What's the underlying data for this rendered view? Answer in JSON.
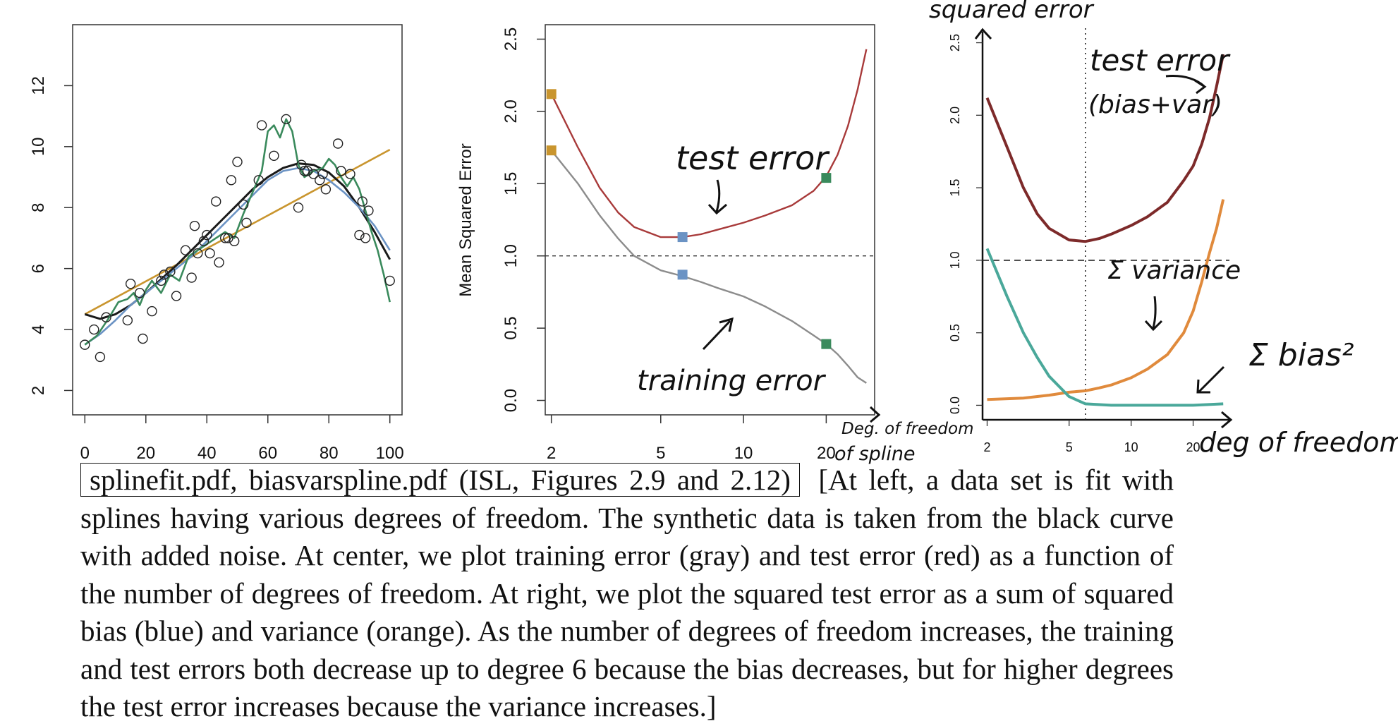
{
  "chart_data": [
    {
      "type": "scatter",
      "title": "",
      "xlabel": "",
      "ylabel": "",
      "xlim": [
        0,
        100
      ],
      "ylim": [
        1.2,
        14
      ],
      "xticks": [
        "0",
        "20",
        "40",
        "60",
        "80",
        "100"
      ],
      "yticks": [
        "2",
        "4",
        "6",
        "8",
        "10",
        "12"
      ],
      "points": {
        "x": [
          0,
          3,
          5,
          7,
          14,
          15,
          18,
          19,
          22,
          25,
          26,
          28,
          30,
          33,
          35,
          36,
          37,
          39,
          40,
          41,
          43,
          44,
          46,
          47,
          48,
          49,
          50,
          52,
          53,
          57,
          58,
          62,
          66,
          70,
          71,
          72,
          73,
          75,
          77,
          78,
          79,
          83,
          84,
          87,
          90,
          91,
          92,
          93,
          100
        ],
        "y": [
          3.5,
          4.0,
          3.1,
          4.4,
          4.3,
          5.5,
          5.2,
          3.7,
          4.6,
          5.6,
          5.8,
          5.9,
          5.1,
          6.6,
          5.7,
          7.4,
          6.5,
          6.9,
          7.1,
          6.5,
          8.2,
          6.2,
          7.0,
          7.0,
          8.9,
          6.9,
          9.5,
          8.1,
          7.5,
          8.9,
          10.7,
          9.7,
          10.9,
          8.0,
          9.4,
          9.2,
          9.2,
          9.1,
          8.9,
          9.1,
          8.6,
          10.1,
          9.2,
          9.1,
          7.1,
          8.2,
          7.0,
          7.9,
          5.6
        ]
      },
      "series": [
        {
          "name": "",
          "color": "#c9952e",
          "x": [
            0,
            100
          ],
          "y": [
            4.5,
            9.9
          ]
        },
        {
          "name": "",
          "color": "#1a1a1a",
          "x": [
            0,
            5,
            10,
            15,
            20,
            25,
            30,
            35,
            40,
            45,
            50,
            55,
            60,
            65,
            70,
            75,
            80,
            85,
            90,
            95,
            100
          ],
          "y": [
            4.5,
            4.35,
            4.5,
            4.8,
            5.2,
            5.65,
            6.1,
            6.6,
            7.1,
            7.6,
            8.1,
            8.6,
            9.0,
            9.3,
            9.45,
            9.4,
            9.15,
            8.7,
            8.0,
            7.2,
            6.3
          ]
        },
        {
          "name": "",
          "color": "#6b93c4",
          "x": [
            0,
            5,
            10,
            15,
            20,
            25,
            30,
            35,
            40,
            45,
            50,
            55,
            60,
            65,
            70,
            75,
            80,
            85,
            90,
            95,
            100
          ],
          "y": [
            3.5,
            3.85,
            4.3,
            4.8,
            5.2,
            5.6,
            6.0,
            6.4,
            6.9,
            7.4,
            7.9,
            8.4,
            8.9,
            9.2,
            9.3,
            9.2,
            8.9,
            8.5,
            8.0,
            7.4,
            6.6
          ]
        },
        {
          "name": "",
          "color": "#3a8a5c",
          "x": [
            0,
            4,
            8,
            11,
            14,
            16,
            18,
            20,
            22,
            25,
            28,
            31,
            34,
            37,
            40,
            43,
            46,
            49,
            52,
            55,
            58,
            60,
            62,
            64,
            66,
            68,
            70,
            72,
            75,
            78,
            80,
            82,
            84,
            86,
            88,
            90,
            92,
            94,
            96,
            98,
            100
          ],
          "y": [
            3.5,
            3.8,
            4.4,
            4.9,
            5.0,
            5.2,
            4.8,
            5.3,
            5.6,
            5.2,
            5.8,
            5.6,
            6.4,
            6.6,
            6.8,
            7.0,
            7.2,
            7.0,
            7.8,
            8.5,
            9.2,
            10.5,
            10.7,
            10.3,
            10.9,
            10.5,
            9.4,
            9.0,
            9.2,
            9.3,
            9.6,
            9.4,
            9.0,
            8.7,
            9.0,
            8.6,
            7.9,
            7.2,
            6.6,
            5.8,
            4.9
          ]
        }
      ]
    },
    {
      "type": "line",
      "title": "",
      "xlabel": "",
      "ylabel": "Mean Squared Error",
      "xscale": "log",
      "xlim": [
        1.9,
        30
      ],
      "ylim": [
        -0.1,
        2.6
      ],
      "xticks": [
        "2",
        "5",
        "10",
        "20"
      ],
      "yticks": [
        "0.0",
        "0.5",
        "1.0",
        "1.5",
        "2.0",
        "2.5"
      ],
      "hline": 1.0,
      "series": [
        {
          "name": "",
          "color": "#a83a3a",
          "x": [
            2,
            2.5,
            3,
            3.5,
            4,
            5,
            6,
            7,
            8,
            10,
            12,
            15,
            18,
            20,
            22,
            24,
            26,
            28
          ],
          "y": [
            2.12,
            1.75,
            1.47,
            1.3,
            1.2,
            1.13,
            1.13,
            1.15,
            1.18,
            1.23,
            1.28,
            1.35,
            1.45,
            1.55,
            1.7,
            1.9,
            2.15,
            2.43
          ]
        },
        {
          "name": "",
          "color": "#8c8c8c",
          "x": [
            2,
            2.5,
            3,
            3.5,
            4,
            5,
            6,
            7,
            8,
            10,
            12,
            15,
            18,
            20,
            22,
            24,
            26,
            28
          ],
          "y": [
            1.73,
            1.5,
            1.28,
            1.12,
            1.0,
            0.9,
            0.86,
            0.82,
            0.78,
            0.72,
            0.65,
            0.55,
            0.45,
            0.39,
            0.32,
            0.24,
            0.16,
            0.12
          ]
        }
      ],
      "markers": [
        {
          "x": 2,
          "y": 2.12,
          "color": "#c9952e"
        },
        {
          "x": 2,
          "y": 1.73,
          "color": "#c9952e"
        },
        {
          "x": 6,
          "y": 1.13,
          "color": "#6b93c4"
        },
        {
          "x": 6,
          "y": 0.87,
          "color": "#6b93c4"
        },
        {
          "x": 20,
          "y": 1.54,
          "color": "#3a8a5c"
        },
        {
          "x": 20,
          "y": 0.39,
          "color": "#3a8a5c"
        }
      ]
    },
    {
      "type": "line",
      "title": "",
      "xlabel": "",
      "ylabel": "",
      "xscale": "log",
      "xlim": [
        1.9,
        30
      ],
      "ylim": [
        -0.1,
        2.6
      ],
      "xticks": [
        "2",
        "5",
        "10",
        "20"
      ],
      "yticks": [
        "0.0",
        "0.5",
        "1.0",
        "1.5",
        "2.0",
        "2.5"
      ],
      "hline": 1.0,
      "vline": 6,
      "series": [
        {
          "name": "",
          "color": "#7d2a2a",
          "x": [
            2,
            2.5,
            3,
            3.5,
            4,
            5,
            6,
            7,
            8,
            10,
            12,
            15,
            18,
            20,
            22,
            24,
            26,
            28
          ],
          "y": [
            2.12,
            1.78,
            1.5,
            1.32,
            1.22,
            1.14,
            1.13,
            1.15,
            1.18,
            1.24,
            1.3,
            1.4,
            1.55,
            1.65,
            1.8,
            1.98,
            2.2,
            2.42
          ]
        },
        {
          "name": "",
          "color": "#e08a3c",
          "x": [
            2,
            3,
            4,
            5,
            6,
            7,
            8,
            10,
            12,
            15,
            18,
            20,
            22,
            24,
            26,
            28
          ],
          "y": [
            0.04,
            0.05,
            0.07,
            0.09,
            0.1,
            0.12,
            0.14,
            0.19,
            0.25,
            0.35,
            0.5,
            0.65,
            0.85,
            1.05,
            1.22,
            1.42
          ]
        },
        {
          "name": "",
          "color": "#4aa89a",
          "x": [
            2,
            2.5,
            3,
            3.5,
            4,
            5,
            6,
            8,
            10,
            15,
            20,
            28
          ],
          "y": [
            1.08,
            0.75,
            0.5,
            0.33,
            0.2,
            0.06,
            0.01,
            0.0,
            0.0,
            0.0,
            0.0,
            0.01
          ]
        }
      ]
    }
  ],
  "annotations": {
    "center_test_error": "test error",
    "center_training_error": "training error",
    "center_xaxis_note_line1": "Deg. of freedom",
    "center_xaxis_note_line2": "of spline",
    "right_yaxis_note": "squared error",
    "right_test_error_line1": "test error",
    "right_test_error_line2": "(bias+var)",
    "right_variance": "Σ variance",
    "right_bias": "Σ bias²",
    "right_xaxis_note": "deg of freedom"
  },
  "caption": {
    "boxed": "splinefit.pdf, biasvarspline.pdf (ISL, Figures 2.9 and 2.12)",
    "text": "[At left, a data set is fit with splines having various degrees of freedom. The synthetic data is taken from the black curve with added noise. At center, we plot training error (gray) and test error (red) as a function of the number of degrees of freedom. At right, we plot the squared test error as a sum of squared bias (blue) and variance (orange). As the number of degrees of freedom increases, the training and test errors both decrease up to degree 6 because the bias decreases, but for higher degrees the test error increases because the variance increases.]"
  }
}
